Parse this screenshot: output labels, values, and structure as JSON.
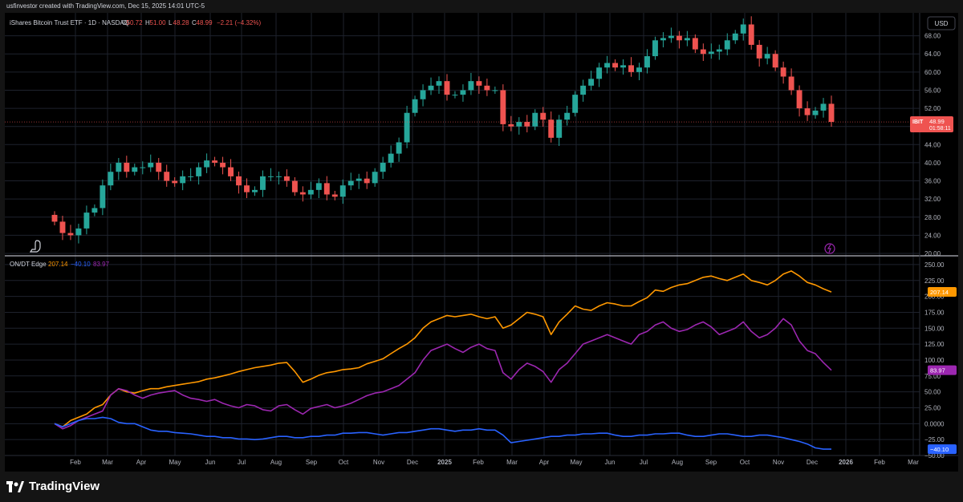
{
  "header": {
    "attribution": "usfinvestor created with TradingView.com, Dec 15, 2025 14:01 UTC-5"
  },
  "chart": {
    "title": "iShares Bitcoin Trust ETF · 1D · NASDAQ",
    "ohlc": {
      "o_label": "O",
      "o": "50.72",
      "h_label": "H",
      "h": "51.00",
      "l_label": "L",
      "l": "48.28",
      "c_label": "C",
      "c": "48.99",
      "change": "−2.21 (−4.32%)"
    },
    "currency_button": "USD",
    "price_label": {
      "symbol": "IBIT",
      "value": "48.99",
      "countdown": "01:58:11"
    },
    "colors": {
      "up": "#26a69a",
      "down": "#ef5350",
      "orange": "#ff9800",
      "purple": "#9c27b0",
      "blue": "#2962ff"
    }
  },
  "indicator": {
    "name": "ON/DT Edge",
    "v1": "207.14",
    "v2": "−40.10",
    "v3": "83.97"
  },
  "brand": {
    "name": "TradingView"
  },
  "chart_data": [
    {
      "type": "candlestick",
      "x_tick_labels": [
        "Feb",
        "Mar",
        "Apr",
        "May",
        "Jun",
        "Jul",
        "Aug",
        "Sep",
        "Oct",
        "Nov",
        "Dec",
        "2025",
        "Feb",
        "Mar",
        "Apr",
        "May",
        "Jun",
        "Jul",
        "Aug",
        "Sep",
        "Oct",
        "Nov",
        "Dec",
        "2026",
        "Feb",
        "Mar"
      ],
      "y_tick_labels": [
        "68.00",
        "64.00",
        "60.00",
        "56.00",
        "52.00",
        "48.00",
        "44.00",
        "40.00",
        "36.00",
        "32.00",
        "28.00",
        "24.00",
        "20.00"
      ],
      "ylim": [
        20,
        72
      ],
      "x": [
        0,
        10,
        20,
        30,
        40,
        50,
        60,
        70,
        80,
        90,
        100,
        110,
        120,
        130,
        140,
        150,
        160,
        170,
        180,
        190,
        200,
        210,
        220,
        230,
        240,
        250,
        260,
        270,
        280,
        290,
        300,
        310,
        320,
        330,
        340,
        350,
        360,
        370,
        380,
        390,
        400,
        410,
        420,
        430,
        440,
        450,
        460,
        470,
        480,
        490,
        500,
        510,
        520,
        530,
        540,
        550,
        560,
        570,
        580,
        590,
        600,
        610,
        620,
        630,
        640,
        650,
        660,
        670,
        680,
        690,
        700,
        710,
        720,
        730,
        740,
        750,
        760,
        770,
        780,
        790,
        800,
        810,
        820,
        830,
        840,
        850,
        860,
        870,
        880,
        890,
        900,
        910,
        920,
        930,
        940,
        950,
        960,
        970
      ],
      "close": [
        27,
        24.5,
        24,
        25.5,
        29,
        30,
        35,
        38,
        40,
        38,
        39,
        39,
        40,
        38,
        36,
        35.5,
        37,
        37,
        39,
        40.5,
        40,
        39,
        37,
        35,
        33.5,
        34,
        37,
        37,
        37,
        36,
        33.5,
        33,
        34,
        35.5,
        33,
        32.5,
        35,
        36,
        36.5,
        35.5,
        38,
        40,
        42,
        44.5,
        51,
        54,
        56,
        57,
        58,
        55,
        55,
        56,
        58,
        57,
        56,
        56,
        48.5,
        48,
        49,
        48,
        51,
        49.5,
        45.5,
        49.5,
        51,
        55,
        57,
        58.5,
        61,
        62,
        61,
        61.5,
        60,
        61,
        63.5,
        67,
        67.5,
        68,
        67,
        67.5,
        65,
        64,
        64.5,
        65,
        67,
        68.5,
        70.5,
        66,
        63,
        64,
        61,
        59,
        56,
        52,
        50.5,
        51.5,
        53,
        49
      ]
    },
    {
      "type": "line",
      "y_tick_labels": [
        "250.00",
        "225.00",
        "200.00",
        "175.00",
        "150.00",
        "125.00",
        "100.00",
        "75.00",
        "50.00",
        "25.00",
        "0.0000",
        "−25.00",
        "−50.00"
      ],
      "ylim": [
        -50,
        260
      ],
      "x": [
        0,
        10,
        20,
        30,
        40,
        50,
        60,
        70,
        80,
        90,
        100,
        110,
        120,
        130,
        140,
        150,
        160,
        170,
        180,
        190,
        200,
        210,
        220,
        230,
        240,
        250,
        260,
        270,
        280,
        290,
        300,
        310,
        320,
        330,
        340,
        350,
        360,
        370,
        380,
        390,
        400,
        410,
        420,
        430,
        440,
        450,
        460,
        470,
        480,
        490,
        500,
        510,
        520,
        530,
        540,
        550,
        560,
        570,
        580,
        590,
        600,
        610,
        620,
        630,
        640,
        650,
        660,
        670,
        680,
        690,
        700,
        710,
        720,
        730,
        740,
        750,
        760,
        770,
        780,
        790,
        800,
        810,
        820,
        830,
        840,
        850,
        860,
        870,
        880,
        890,
        900,
        910,
        920,
        930,
        940,
        950,
        960,
        970
      ],
      "series": [
        {
          "name": "",
          "values": [
            0,
            -5,
            5,
            10,
            15,
            25,
            30,
            45,
            55,
            50,
            48,
            52,
            55,
            55,
            58,
            60,
            62,
            64,
            66,
            70,
            72,
            75,
            78,
            82,
            85,
            88,
            90,
            92,
            95,
            96,
            82,
            65,
            70,
            76,
            80,
            82,
            85,
            86,
            88,
            94,
            98,
            102,
            110,
            118,
            125,
            135,
            150,
            160,
            165,
            170,
            168,
            170,
            172,
            168,
            165,
            168,
            150,
            155,
            165,
            175,
            172,
            168,
            140,
            160,
            172,
            185,
            180,
            178,
            185,
            190,
            188,
            185,
            185,
            192,
            198,
            210,
            208,
            214,
            218,
            220,
            225,
            230,
            232,
            228,
            225,
            230,
            235,
            225,
            222,
            218,
            225,
            235,
            240,
            232,
            222,
            218,
            212,
            207
          ]
        },
        {
          "name": "",
          "values": [
            0,
            -8,
            -3,
            5,
            10,
            15,
            20,
            45,
            55,
            52,
            45,
            40,
            45,
            48,
            50,
            52,
            45,
            40,
            38,
            35,
            38,
            32,
            28,
            25,
            30,
            28,
            22,
            20,
            28,
            30,
            22,
            15,
            24,
            27,
            30,
            25,
            28,
            32,
            38,
            44,
            48,
            50,
            55,
            60,
            70,
            80,
            100,
            115,
            120,
            125,
            118,
            112,
            120,
            125,
            118,
            115,
            80,
            70,
            85,
            95,
            90,
            82,
            65,
            85,
            95,
            110,
            125,
            130,
            135,
            140,
            135,
            130,
            125,
            140,
            145,
            155,
            160,
            150,
            145,
            148,
            155,
            160,
            152,
            140,
            145,
            150,
            160,
            145,
            135,
            140,
            150,
            165,
            155,
            130,
            115,
            110,
            96,
            84
          ]
        },
        {
          "name": "",
          "values": [
            0,
            -5,
            0,
            5,
            8,
            8,
            10,
            8,
            2,
            0,
            0,
            -5,
            -10,
            -12,
            -12,
            -14,
            -15,
            -16,
            -18,
            -20,
            -20,
            -22,
            -22,
            -24,
            -24,
            -25,
            -24,
            -22,
            -20,
            -20,
            -22,
            -22,
            -20,
            -20,
            -18,
            -18,
            -15,
            -15,
            -14,
            -14,
            -16,
            -18,
            -16,
            -14,
            -14,
            -12,
            -10,
            -8,
            -8,
            -10,
            -12,
            -10,
            -10,
            -8,
            -10,
            -10,
            -18,
            -30,
            -28,
            -26,
            -24,
            -22,
            -20,
            -20,
            -18,
            -18,
            -16,
            -16,
            -15,
            -15,
            -18,
            -20,
            -20,
            -18,
            -18,
            -16,
            -16,
            -15,
            -15,
            -18,
            -20,
            -20,
            -18,
            -16,
            -16,
            -18,
            -20,
            -20,
            -18,
            -18,
            -20,
            -22,
            -25,
            -28,
            -32,
            -38,
            -40,
            -40
          ]
        }
      ]
    }
  ]
}
